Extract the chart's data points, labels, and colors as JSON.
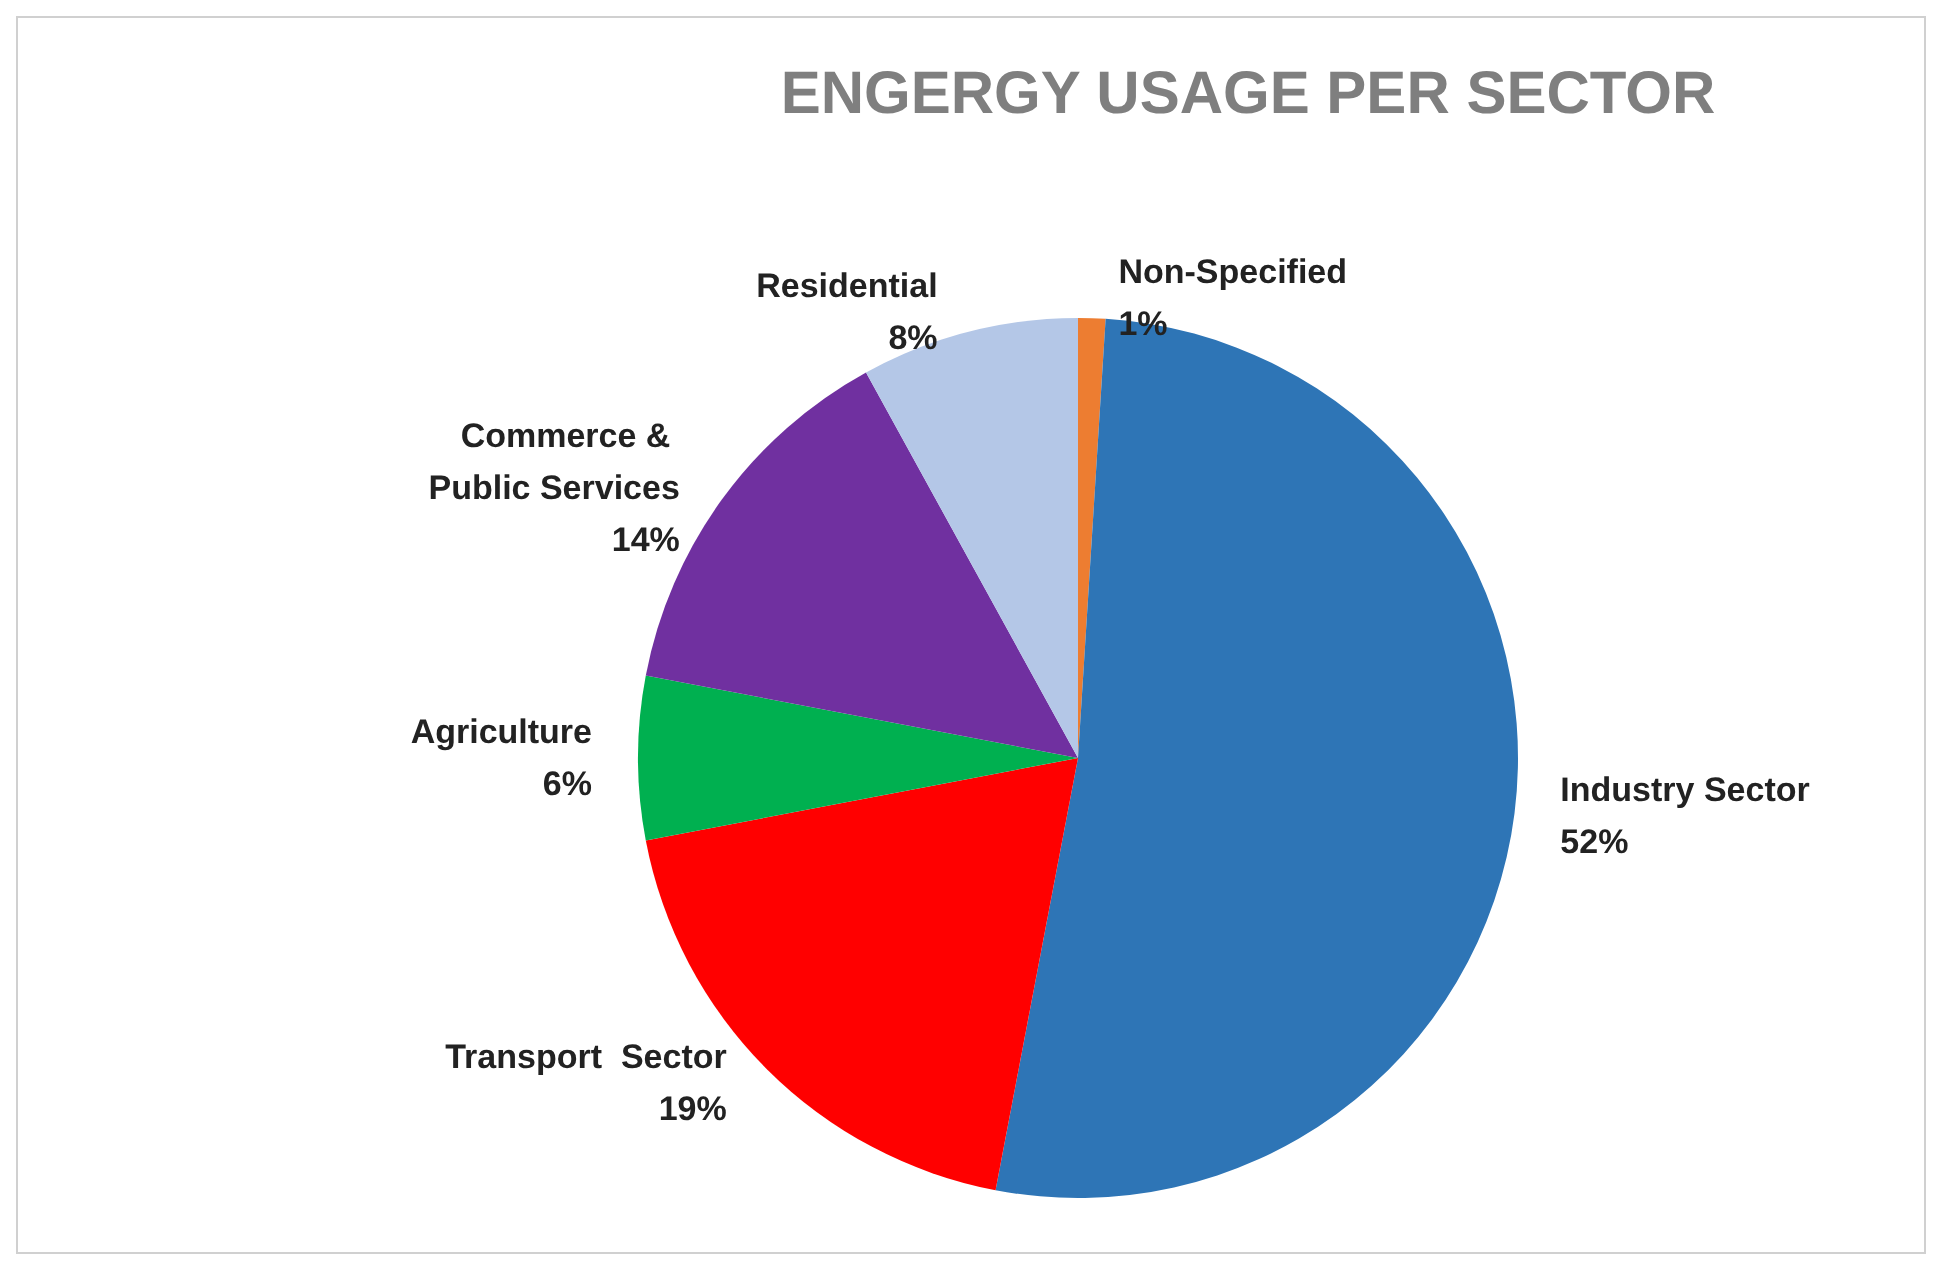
{
  "chart_data": {
    "type": "pie",
    "title": "ENGERGY USAGE PER SECTOR",
    "categories": [
      "Non-Specified",
      "Industry Sector",
      "Transport  Sector",
      "Agriculture",
      "Commerce & Public Services",
      "Residential"
    ],
    "values": [
      1,
      52,
      19,
      6,
      14,
      8
    ],
    "value_labels": [
      "1%",
      "52%",
      "19%",
      "6%",
      "14%",
      "8%"
    ],
    "colors": [
      "#ed7d31",
      "#2e75b6",
      "#ff0000",
      "#00b050",
      "#7030a0",
      "#b4c7e7"
    ],
    "legend": false
  }
}
